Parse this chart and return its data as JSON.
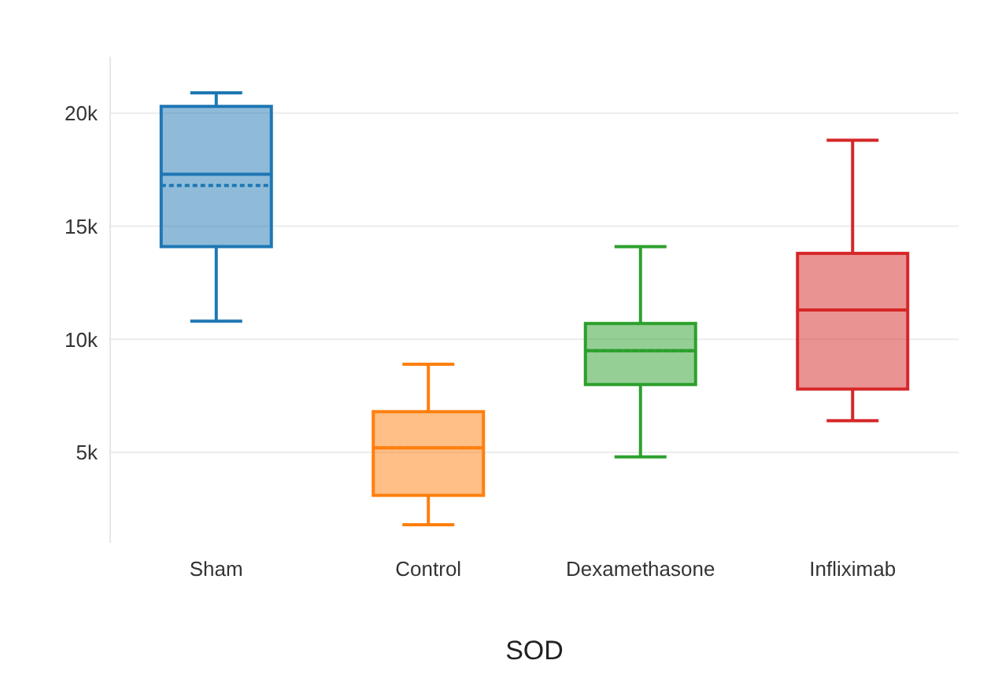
{
  "chart_data": {
    "type": "box",
    "xlabel": "SOD",
    "categories": [
      "Sham",
      "Control",
      "Dexamethasone",
      "Infliximab"
    ],
    "colors": [
      "#1f77b4",
      "#ff7f0e",
      "#2ca02c",
      "#d62728"
    ],
    "boxes": [
      {
        "low": 10800,
        "q1": 14100,
        "median": 17300,
        "q3": 20300,
        "high": 20900,
        "mean": 16800
      },
      {
        "low": 1800,
        "q1": 3100,
        "median": 5200,
        "q3": 6800,
        "high": 8900,
        "mean": 5200
      },
      {
        "low": 4800,
        "q1": 8000,
        "median": 9500,
        "q3": 10700,
        "high": 14100,
        "mean": 9500
      },
      {
        "low": 6400,
        "q1": 7800,
        "median": 11300,
        "q3": 13800,
        "high": 18800,
        "mean": 11300
      }
    ],
    "ylim": [
      1000,
      22500
    ],
    "yticks": [
      {
        "value": 5000,
        "label": "5k"
      },
      {
        "value": 10000,
        "label": "10k"
      },
      {
        "value": 15000,
        "label": "15k"
      },
      {
        "value": 20000,
        "label": "20k"
      }
    ],
    "grid": "y"
  }
}
